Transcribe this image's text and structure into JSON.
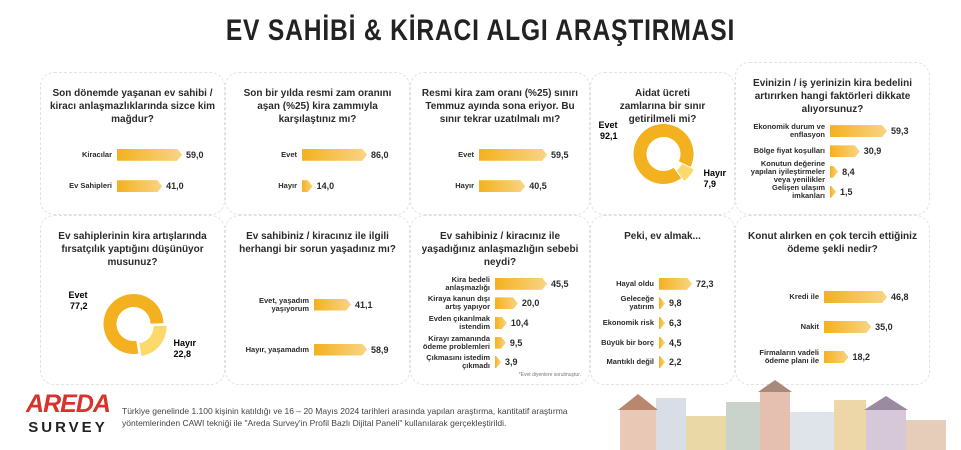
{
  "header": {
    "title": "EV SAHİBİ & KİRACI ALGI ARAŞTIRMASI"
  },
  "logo": {
    "brand": "AREDA",
    "sub": "SURVEY"
  },
  "footer": {
    "text": "Türkiye genelinde 1.100 kişinin katıldığı ve 16 – 20 Mayıs 2024 tarihleri arasında yapılan araştırma, kantitatif araştırma yöntemlerinden CAWI tekniği ile \"Areda Survey'in Profil Bazlı Dijital Paneli\" kullanılarak gerçekleştirildi."
  },
  "chart_data": [
    {
      "type": "bar",
      "title": "Son dönemde yaşanan ev sahibi / kiracı anlaşmazlıklarında sizce kim mağdur?",
      "categories": [
        "Kiracılar",
        "Ev Sahipleri"
      ],
      "values": [
        59.0,
        41.0
      ],
      "value_labels": [
        "59,0",
        "41,0"
      ],
      "color": "#f4b11f"
    },
    {
      "type": "bar",
      "title": "Son bir yılda resmi zam oranını aşan (%25) kira zammıyla karşılaştınız mı?",
      "categories": [
        "Evet",
        "Hayır"
      ],
      "values": [
        86.0,
        14.0
      ],
      "value_labels": [
        "86,0",
        "14,0"
      ],
      "color": "#f4b11f"
    },
    {
      "type": "bar",
      "title": "Resmi kira zam oranı (%25) sınırı Temmuz ayında sona eriyor. Bu sınır tekrar uzatılmalı mı?",
      "categories": [
        "Evet",
        "Hayır"
      ],
      "values": [
        59.5,
        40.5
      ],
      "value_labels": [
        "59,5",
        "40,5"
      ],
      "color": "#f4b11f"
    },
    {
      "type": "pie",
      "title": "Aidat ücreti zamlarına bir sınır getirilmeli mi?",
      "categories": [
        "Evet",
        "Hayır"
      ],
      "values": [
        92.1,
        7.9
      ],
      "value_labels": [
        "92,1",
        "7,9"
      ],
      "colors": [
        "#f4b11f",
        "#fcd96b"
      ]
    },
    {
      "type": "bar",
      "title": "Evinizin / iş yerinizin kira bedelini artırırken hangi faktörleri dikkate alıyorsunuz?",
      "categories": [
        "Ekonomik durum ve enflasyon",
        "Bölge fiyat koşulları",
        "Konutun değerine yapılan iyileştirmeler veya yenilikler",
        "Gelişen ulaşım imkanları"
      ],
      "values": [
        59.3,
        30.9,
        8.4,
        1.5
      ],
      "value_labels": [
        "59,3",
        "30,9",
        "8,4",
        "1,5"
      ],
      "color": "#f4b11f"
    },
    {
      "type": "pie",
      "title": "Ev sahiplerinin kira artışlarında fırsatçılık yaptığını düşünüyor musunuz?",
      "categories": [
        "Evet",
        "Hayır"
      ],
      "values": [
        77.2,
        22.8
      ],
      "value_labels": [
        "77,2",
        "22,8"
      ],
      "colors": [
        "#f4b11f",
        "#fcd96b"
      ]
    },
    {
      "type": "bar",
      "title": "Ev sahibiniz / kiracınız ile ilgili herhangi bir sorun yaşadınız mı?",
      "categories": [
        "Evet, yaşadım yaşıyorum",
        "Hayır, yaşamadım"
      ],
      "values": [
        41.1,
        58.9
      ],
      "value_labels": [
        "41,1",
        "58,9"
      ],
      "color": "#f4b11f"
    },
    {
      "type": "bar",
      "title": "Ev sahibiniz / kiracınız ile yaşadığınız anlaşmazlığın sebebi neydi?",
      "categories": [
        "Kira bedeli anlaşmazlığı",
        "Kiraya kanun dışı artış yapıyor",
        "Evden çıkarılmak istendim",
        "Kirayı zamanında ödeme problemleri",
        "Çıkmasını istedim çıkmadı"
      ],
      "values": [
        45.5,
        20.0,
        10.4,
        9.5,
        3.9
      ],
      "value_labels": [
        "45,5",
        "20,0",
        "10,4",
        "9,5",
        "3,9"
      ],
      "note": "*Evet diyenlere sorulmuştur.",
      "color": "#f4b11f"
    },
    {
      "type": "bar",
      "title": "Peki, ev almak...",
      "categories": [
        "Hayal oldu",
        "Geleceğe yatırım",
        "Ekonomik risk",
        "Büyük bir borç",
        "Mantıklı değil"
      ],
      "values": [
        72.3,
        9.8,
        6.3,
        4.5,
        2.2
      ],
      "value_labels": [
        "72,3",
        "9,8",
        "6,3",
        "4,5",
        "2,2"
      ],
      "color": "#f4b11f"
    },
    {
      "type": "bar",
      "title": "Konut alırken en çok tercih ettiğiniz ödeme şekli nedir?",
      "categories": [
        "Kredi ile",
        "Nakit",
        "Firmaların vadeli ödeme planı ile"
      ],
      "values": [
        46.8,
        35.0,
        18.2
      ],
      "value_labels": [
        "46,8",
        "35,0",
        "18,2"
      ],
      "color": "#f4b11f"
    }
  ]
}
